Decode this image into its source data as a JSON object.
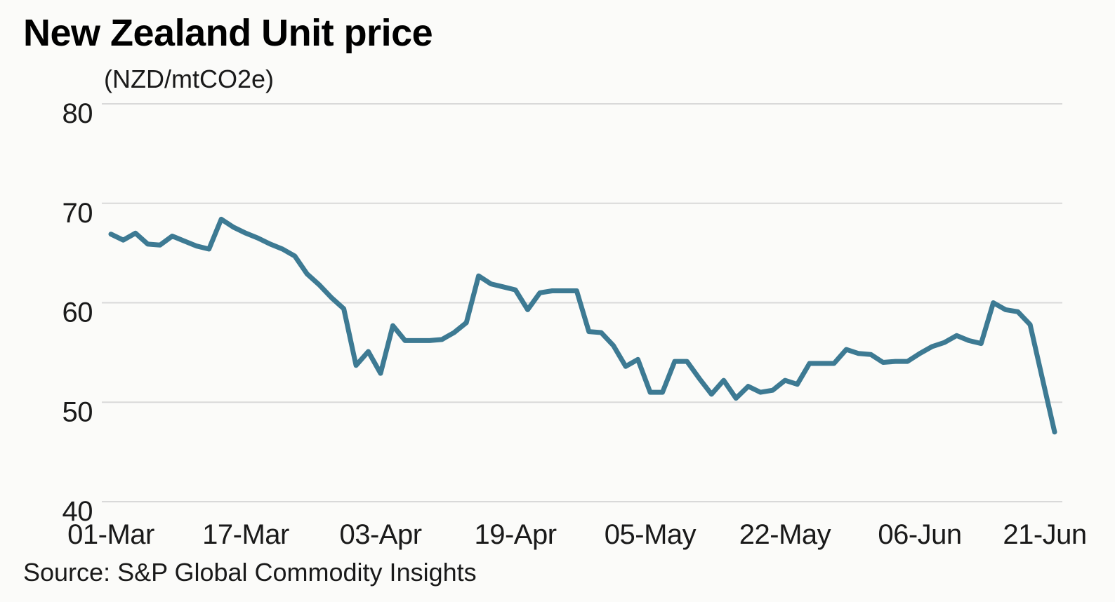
{
  "header": {
    "title": "New Zealand Unit price",
    "subtitle": "(NZD/mtCO2e)"
  },
  "footer": {
    "source": "Source: S&P Global Commodity Insights"
  },
  "colors": {
    "line": "#3D7A93",
    "grid": "#D9D9D9",
    "title": "#000000",
    "label": "#1A1A1A",
    "background": "#FBFBF9"
  },
  "chart_data": {
    "type": "line",
    "title": "New Zealand Unit price",
    "ylabel": "(NZD/mtCO2e)",
    "xlabel": "",
    "source": "Source: S&P Global Commodity Insights",
    "grid": true,
    "legend_position": "none",
    "ylim": [
      40,
      80
    ],
    "y_ticks": [
      80,
      70,
      60,
      50,
      40
    ],
    "x_tick_labels": [
      "01-Mar",
      "17-Mar",
      "03-Apr",
      "19-Apr",
      "05-May",
      "22-May",
      "06-Jun",
      "21-Jun"
    ],
    "x_tick_indices": [
      0,
      11,
      22,
      33,
      44,
      55,
      66,
      77
    ],
    "series": [
      {
        "name": "New Zealand Unit price (NZD/mtCO2e)",
        "values": [
          66.9,
          66.3,
          67.0,
          65.9,
          65.8,
          66.7,
          66.2,
          65.7,
          65.4,
          68.4,
          67.6,
          67.0,
          66.5,
          65.9,
          65.4,
          64.7,
          62.9,
          61.8,
          60.5,
          59.4,
          53.7,
          55.1,
          52.9,
          57.7,
          56.2,
          56.2,
          56.2,
          56.3,
          57.0,
          58.0,
          62.7,
          61.9,
          61.6,
          61.3,
          59.3,
          61.0,
          61.2,
          61.2,
          61.2,
          57.1,
          57.0,
          55.7,
          53.6,
          54.3,
          51.0,
          51.0,
          54.1,
          54.1,
          52.4,
          50.8,
          52.2,
          50.4,
          51.6,
          51.0,
          51.2,
          52.2,
          51.8,
          53.9,
          53.9,
          53.9,
          55.3,
          54.9,
          54.8,
          54.0,
          54.1,
          54.1,
          54.9,
          55.6,
          56.0,
          56.7,
          56.2,
          55.9,
          60.0,
          59.3,
          59.1,
          57.8,
          52.4,
          47.0
        ]
      }
    ]
  }
}
